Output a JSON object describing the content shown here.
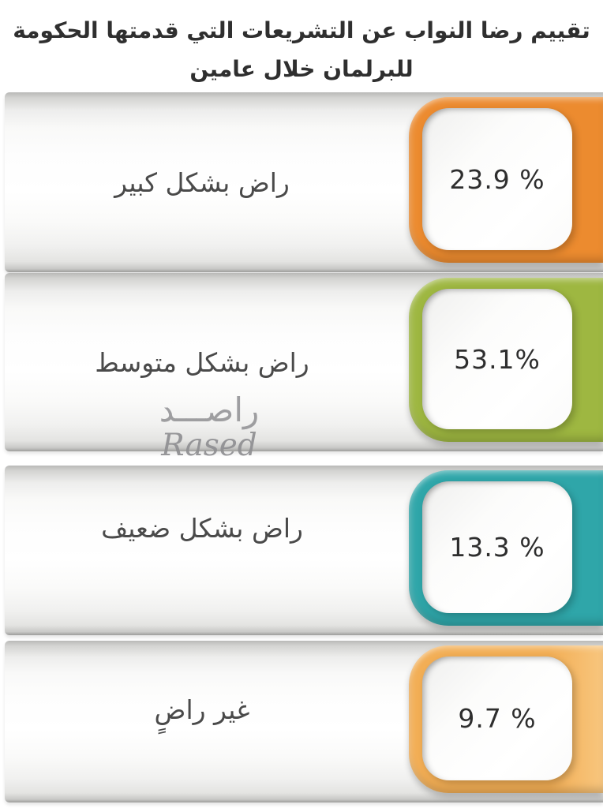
{
  "title": {
    "line1": "تقييم رضا النواب عن التشريعات التي قدمتها الحكومة",
    "line2": "للبرلمان خلال عامين"
  },
  "watermark": {
    "arabic": "راصـــد",
    "latin": "Rased"
  },
  "rows": [
    {
      "label": "راض بشكل كبير",
      "value": "23.9 %",
      "color": "#EC8B2F",
      "color_edge": "#EC8B2F"
    },
    {
      "label": "راض بشكل متوسط",
      "value": "53.1%",
      "color": "#9EB741",
      "color_edge": "#9EB741"
    },
    {
      "label": "راض بشكل ضعيف",
      "value": "13.3 %",
      "color": "#2FA6A9",
      "color_edge": "#2FA6A9"
    },
    {
      "label": "غير راضٍ",
      "value": "9.7 %",
      "color": "#F2AE55",
      "color_edge": "#F8C67E"
    }
  ],
  "chart_data": {
    "type": "bar",
    "orientation": "horizontal",
    "title": "تقييم رضا النواب عن التشريعات التي قدمتها الحكومة للبرلمان خلال عامين",
    "categories": [
      "راض بشكل كبير",
      "راض بشكل متوسط",
      "راض بشكل ضعيف",
      "غير راضٍ"
    ],
    "values": [
      23.9,
      53.1,
      13.3,
      9.7
    ],
    "unit": "%",
    "value_labels": [
      "23.9 %",
      "53.1%",
      "13.3 %",
      "9.7 %"
    ],
    "colors": [
      "#EC8B2F",
      "#9EB741",
      "#2FA6A9",
      "#F2AE55"
    ],
    "legend": "none",
    "grid": false,
    "source_watermark": "راصـــد Rased"
  }
}
